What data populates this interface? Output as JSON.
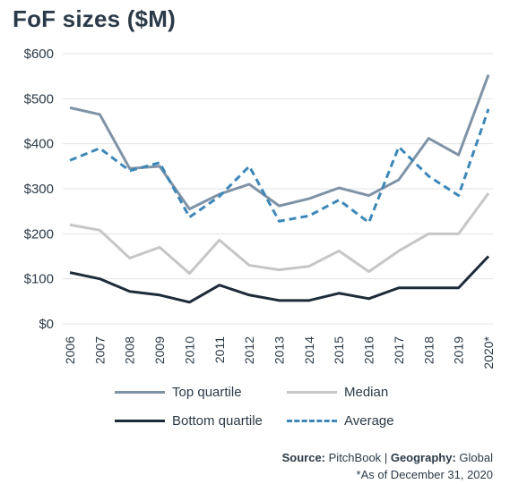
{
  "chart_data": {
    "type": "line",
    "title": "FoF sizes ($M)",
    "categories": [
      "2006",
      "2007",
      "2008",
      "2009",
      "2010",
      "2011",
      "2012",
      "2013",
      "2014",
      "2015",
      "2016",
      "2017",
      "2018",
      "2019",
      "2020*"
    ],
    "y_ticks": [
      "$0",
      "$100",
      "$200",
      "$300",
      "$400",
      "$500",
      "$600"
    ],
    "ylim": [
      0,
      600
    ],
    "grid": "horizontal",
    "legend_position": "bottom",
    "series": [
      {
        "name": "Top quartile",
        "color": "#7f93a6",
        "style": "solid",
        "values": [
          480,
          465,
          345,
          350,
          255,
          288,
          310,
          262,
          278,
          302,
          285,
          320,
          412,
          375,
          553
        ]
      },
      {
        "name": "Median",
        "color": "#c6c6c6",
        "style": "solid",
        "values": [
          220,
          208,
          146,
          170,
          112,
          186,
          130,
          120,
          128,
          162,
          116,
          162,
          200,
          200,
          290
        ]
      },
      {
        "name": "Bottom quartile",
        "color": "#1d2b3a",
        "style": "solid",
        "values": [
          114,
          100,
          72,
          64,
          48,
          86,
          64,
          52,
          52,
          68,
          56,
          80,
          80,
          80,
          150
        ]
      },
      {
        "name": "Average",
        "color": "#3d87b8",
        "style": "dashed",
        "values": [
          363,
          390,
          340,
          358,
          237,
          283,
          350,
          228,
          240,
          275,
          225,
          393,
          328,
          285,
          477
        ]
      }
    ]
  },
  "legend": {
    "top_quartile": "Top quartile",
    "median": "Median",
    "bottom_quartile": "Bottom quartile",
    "average": "Average"
  },
  "source": {
    "label": "Source:",
    "value": "PitchBook",
    "separator": "|",
    "geo_label": "Geography:",
    "geo_value": "Global",
    "note": "*As of December 31, 2020"
  }
}
